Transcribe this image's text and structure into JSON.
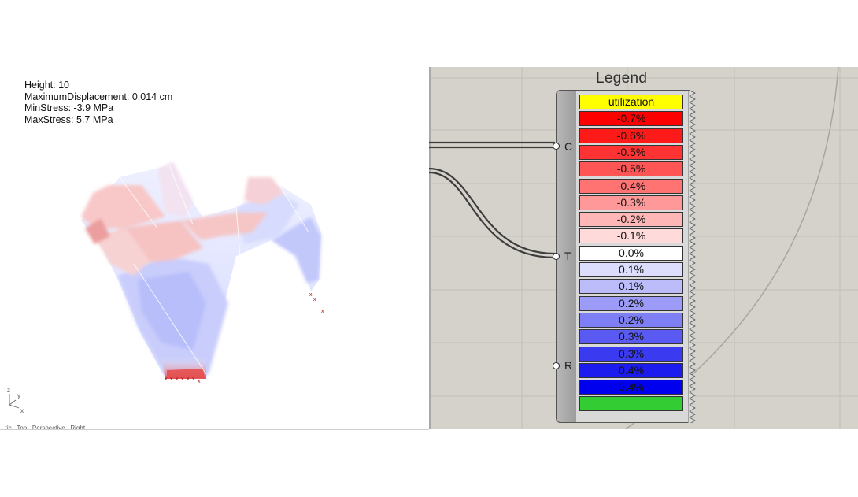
{
  "viewport": {
    "info_lines": [
      "Height: 10",
      "MaximumDisplacement: 0.014 cm",
      "MinStress:  -3.9 MPa",
      "MaxStress: 5.7 MPa"
    ],
    "axis_labels": {
      "z": "z",
      "y": "y",
      "x": "x"
    },
    "status_text": "...tic...Top...Perspective...Right..."
  },
  "legend_component": {
    "title": "Legend",
    "inputs": [
      "C",
      "T",
      "R"
    ],
    "header": {
      "label": "utilization",
      "color": "#ffff00"
    },
    "entries": [
      {
        "label": "-0.7%",
        "color": "#ff0000"
      },
      {
        "label": "-0.6%",
        "color": "#ff1a1a"
      },
      {
        "label": "-0.5%",
        "color": "#ff3333"
      },
      {
        "label": "-0.5%",
        "color": "#ff5555"
      },
      {
        "label": "-0.4%",
        "color": "#ff7373"
      },
      {
        "label": "-0.3%",
        "color": "#ff9999"
      },
      {
        "label": "-0.2%",
        "color": "#ffb6b6"
      },
      {
        "label": "-0.1%",
        "color": "#ffdada"
      },
      {
        "label": "0.0%",
        "color": "#ffffff"
      },
      {
        "label": "0.1%",
        "color": "#dcdcfc"
      },
      {
        "label": "0.1%",
        "color": "#bcbcfa"
      },
      {
        "label": "0.2%",
        "color": "#9c9cf8"
      },
      {
        "label": "0.2%",
        "color": "#7e7ef5"
      },
      {
        "label": "0.3%",
        "color": "#5a5af3"
      },
      {
        "label": "0.3%",
        "color": "#3a3af1"
      },
      {
        "label": "0.4%",
        "color": "#1c1cef"
      },
      {
        "label": "0.4%",
        "color": "#0000ee"
      }
    ],
    "footer": {
      "color": "#33cc33"
    }
  }
}
